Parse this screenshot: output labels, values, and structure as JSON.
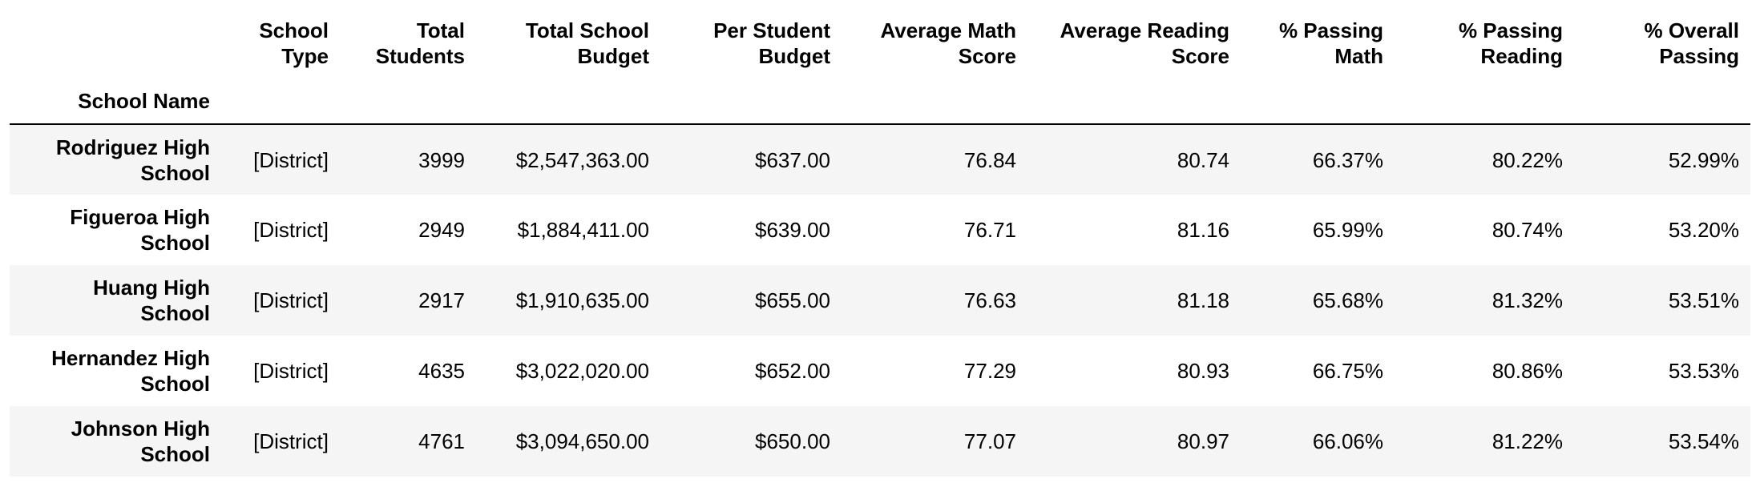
{
  "table": {
    "index_name": "School Name",
    "columns": [
      "School Type",
      "Total Students",
      "Total School Budget",
      "Per Student Budget",
      "Average Math Score",
      "Average Reading Score",
      "% Passing Math",
      "% Passing Reading",
      "% Overall Passing"
    ],
    "rows": [
      {
        "name": "Rodriguez High School",
        "cells": [
          "[District]",
          "3999",
          "$2,547,363.00",
          "$637.00",
          "76.84",
          "80.74",
          "66.37%",
          "80.22%",
          "52.99%"
        ]
      },
      {
        "name": "Figueroa High School",
        "cells": [
          "[District]",
          "2949",
          "$1,884,411.00",
          "$639.00",
          "76.71",
          "81.16",
          "65.99%",
          "80.74%",
          "53.20%"
        ]
      },
      {
        "name": "Huang High School",
        "cells": [
          "[District]",
          "2917",
          "$1,910,635.00",
          "$655.00",
          "76.63",
          "81.18",
          "65.68%",
          "81.32%",
          "53.51%"
        ]
      },
      {
        "name": "Hernandez High School",
        "cells": [
          "[District]",
          "4635",
          "$3,022,020.00",
          "$652.00",
          "77.29",
          "80.93",
          "66.75%",
          "80.86%",
          "53.53%"
        ]
      },
      {
        "name": "Johnson High School",
        "cells": [
          "[District]",
          "4761",
          "$3,094,650.00",
          "$650.00",
          "77.07",
          "80.97",
          "66.06%",
          "81.22%",
          "53.54%"
        ]
      }
    ]
  },
  "colors": {
    "stripe": "#f5f5f5",
    "header_rule": "#000000",
    "text": "#000000"
  }
}
